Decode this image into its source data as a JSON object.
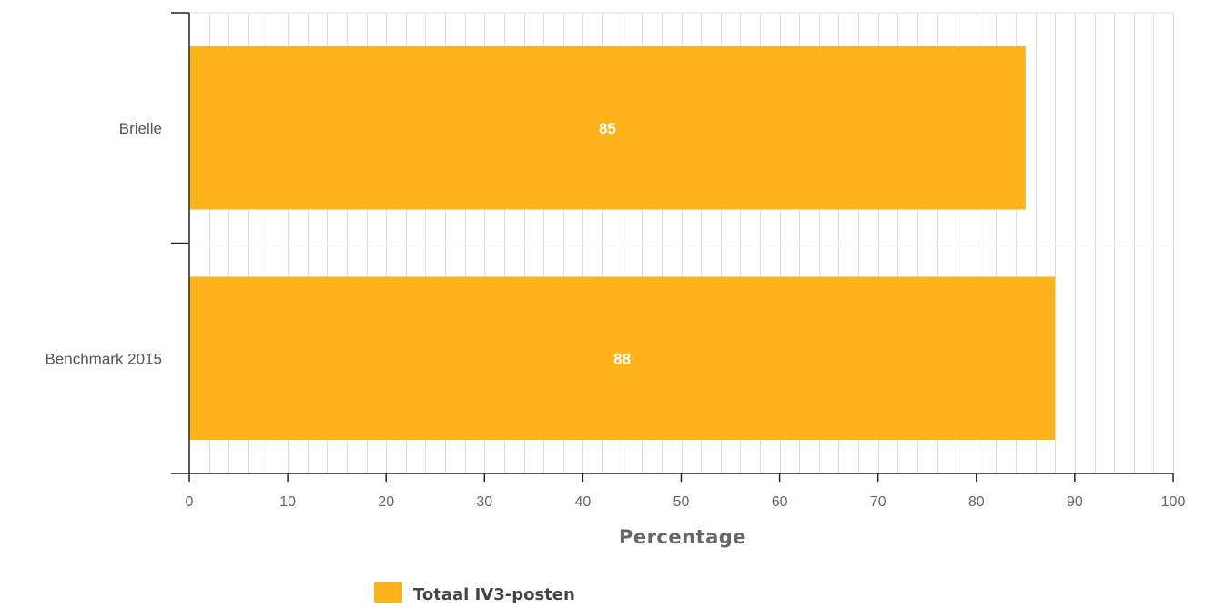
{
  "chart_data": {
    "type": "bar",
    "orientation": "horizontal",
    "categories": [
      "Brielle",
      "Benchmark 2015"
    ],
    "series": [
      {
        "name": "Totaal IV3-posten",
        "values": [
          85,
          88
        ],
        "color": "#FDB31A"
      }
    ],
    "data_labels": [
      "85",
      "88"
    ],
    "xlabel": "Percentage",
    "ylabel": "",
    "xlim": [
      0,
      100
    ],
    "x_ticks": [
      0,
      10,
      20,
      30,
      40,
      50,
      60,
      70,
      80,
      90,
      100
    ],
    "x_tick_labels": [
      "0",
      "10",
      "20",
      "30",
      "40",
      "50",
      "60",
      "70",
      "80",
      "90",
      "100"
    ],
    "minor_grid_step": 2,
    "grid": true,
    "legend": {
      "position": "bottom",
      "entries": [
        "Totaal IV3-posten"
      ]
    }
  },
  "colors": {
    "bar": "#FDB31A",
    "grid": "#dddddd",
    "axis": "#222222"
  }
}
